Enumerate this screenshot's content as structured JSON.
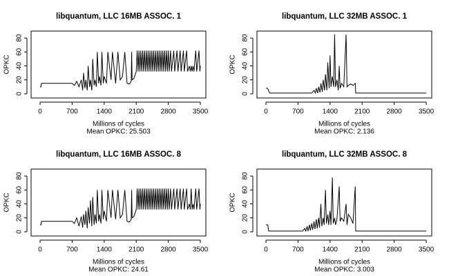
{
  "chart_data": [
    {
      "type": "line",
      "title": "libquantum, LLC 16MB ASSOC. 1",
      "xlabel": "Millions of cycles",
      "subtitle": "Mean OPKC: 25.503",
      "ylabel": "OPKC",
      "color": "#000000",
      "xlim": [
        -196,
        3620
      ],
      "ylim": [
        -6,
        90
      ],
      "xticks": [
        0,
        700,
        1400,
        2100,
        2800,
        3500
      ],
      "yticks": [
        0,
        20,
        40,
        60,
        80
      ],
      "x": [
        0,
        20,
        30,
        700,
        750,
        800,
        850,
        900,
        930,
        950,
        980,
        1000,
        1030,
        1050,
        1080,
        1100,
        1130,
        1150,
        1180,
        1200,
        1230,
        1250,
        1280,
        1300,
        1330,
        1350,
        1380,
        1400,
        1450,
        1480,
        1550,
        1580,
        1650,
        1700,
        1750,
        1800,
        1850,
        1900,
        1950,
        1990,
        2000,
        2010,
        2050,
        2100,
        2120,
        2140,
        2160,
        2180,
        2200,
        2220,
        2240,
        2260,
        2280,
        2300,
        2320,
        2340,
        2360,
        2380,
        2400,
        2420,
        2440,
        2460,
        2480,
        2500,
        2520,
        2540,
        2560,
        2580,
        2600,
        2620,
        2640,
        2660,
        2680,
        2700,
        2720,
        2740,
        2760,
        2780,
        2800,
        2820,
        2850,
        2870,
        2920,
        2940,
        2990,
        3010,
        3060,
        3080,
        3130,
        3150,
        3200,
        3220,
        3260,
        3280,
        3300,
        3320,
        3340,
        3360,
        3400,
        3420,
        3470,
        3490,
        3500
      ],
      "values": [
        10,
        10,
        15,
        15,
        12,
        18,
        10,
        20,
        5,
        30,
        8,
        20,
        5,
        40,
        10,
        20,
        5,
        50,
        12,
        20,
        10,
        60,
        15,
        25,
        12,
        60,
        15,
        25,
        15,
        60,
        20,
        60,
        15,
        60,
        20,
        25,
        60,
        15,
        14,
        18,
        60,
        20,
        22,
        32,
        62,
        32,
        62,
        32,
        62,
        32,
        62,
        32,
        62,
        32,
        62,
        32,
        62,
        32,
        62,
        32,
        62,
        32,
        62,
        32,
        62,
        32,
        62,
        32,
        62,
        32,
        62,
        32,
        62,
        32,
        62,
        32,
        62,
        32,
        62,
        32,
        62,
        32,
        62,
        32,
        62,
        32,
        62,
        32,
        62,
        32,
        62,
        32,
        40,
        32,
        40,
        32,
        40,
        32,
        62,
        32,
        62,
        32,
        40
      ]
    },
    {
      "type": "line",
      "title": "libquantum, LLC 32MB ASSOC. 1",
      "xlabel": "Millions of cycles",
      "subtitle": "Mean OPKC: 2.136",
      "ylabel": "OPKC",
      "color": "#000000",
      "xlim": [
        -196,
        3620
      ],
      "ylim": [
        -6,
        90
      ],
      "xticks": [
        0,
        700,
        1400,
        2100,
        2800,
        3500
      ],
      "yticks": [
        0,
        20,
        40,
        60,
        80
      ],
      "x": [
        0,
        30,
        50,
        80,
        700,
        1000,
        1050,
        1080,
        1100,
        1130,
        1150,
        1180,
        1200,
        1230,
        1250,
        1280,
        1300,
        1330,
        1350,
        1380,
        1400,
        1420,
        1450,
        1480,
        1500,
        1520,
        1550,
        1580,
        1600,
        1620,
        1650,
        1700,
        1750,
        1770,
        1800,
        1850,
        1900,
        1950,
        1960,
        3500
      ],
      "values": [
        8,
        8,
        6,
        1,
        1,
        1,
        5,
        1,
        8,
        1,
        10,
        2,
        15,
        3,
        20,
        5,
        28,
        5,
        45,
        8,
        55,
        10,
        25,
        10,
        85,
        10,
        20,
        5,
        40,
        8,
        15,
        10,
        85,
        10,
        12,
        14,
        12,
        15,
        1,
        1
      ]
    },
    {
      "type": "line",
      "title": "libquantum, LLC 16MB ASSOC. 8",
      "xlabel": "Millions of cycles",
      "subtitle": "Mean OPKC: 24.61",
      "ylabel": "OPKC",
      "color": "#000000",
      "xlim": [
        -196,
        3620
      ],
      "ylim": [
        -6,
        90
      ],
      "xticks": [
        0,
        700,
        1400,
        2100,
        2800,
        3500
      ],
      "yticks": [
        0,
        20,
        40,
        60,
        80
      ],
      "x": [
        0,
        20,
        30,
        700,
        750,
        800,
        850,
        900,
        930,
        950,
        980,
        1000,
        1030,
        1050,
        1080,
        1100,
        1130,
        1150,
        1180,
        1200,
        1230,
        1250,
        1280,
        1300,
        1330,
        1350,
        1380,
        1400,
        1450,
        1480,
        1550,
        1580,
        1650,
        1700,
        1750,
        1800,
        1850,
        1900,
        1950,
        1990,
        2000,
        2010,
        2050,
        2100,
        2120,
        2140,
        2160,
        2180,
        2200,
        2220,
        2240,
        2260,
        2280,
        2300,
        2320,
        2340,
        2360,
        2380,
        2400,
        2420,
        2440,
        2460,
        2480,
        2500,
        2520,
        2540,
        2560,
        2580,
        2600,
        2620,
        2640,
        2660,
        2680,
        2700,
        2720,
        2740,
        2760,
        2780,
        2800,
        2820,
        2850,
        2870,
        2920,
        2940,
        2990,
        3010,
        3060,
        3080,
        3130,
        3150,
        3200,
        3220,
        3260,
        3280,
        3300,
        3320,
        3340,
        3360,
        3400,
        3420,
        3470,
        3490,
        3500
      ],
      "values": [
        10,
        10,
        15,
        15,
        12,
        20,
        8,
        22,
        6,
        25,
        10,
        30,
        5,
        35,
        12,
        45,
        8,
        50,
        10,
        25,
        12,
        60,
        15,
        25,
        12,
        60,
        18,
        30,
        15,
        60,
        20,
        60,
        18,
        60,
        20,
        25,
        60,
        15,
        14,
        18,
        60,
        20,
        22,
        32,
        62,
        32,
        62,
        32,
        62,
        32,
        62,
        32,
        62,
        32,
        62,
        32,
        62,
        32,
        62,
        32,
        62,
        32,
        62,
        32,
        62,
        32,
        62,
        32,
        62,
        32,
        62,
        32,
        62,
        32,
        62,
        32,
        62,
        32,
        62,
        32,
        62,
        32,
        62,
        32,
        62,
        32,
        62,
        32,
        62,
        32,
        62,
        32,
        40,
        32,
        62,
        32,
        40,
        32,
        62,
        32,
        62,
        32,
        40
      ]
    },
    {
      "type": "line",
      "title": "libquantum, LLC 32MB ASSOC. 8",
      "xlabel": "Millions of cycles",
      "subtitle": "Mean OPKC: 3.003",
      "ylabel": "OPKC",
      "color": "#000000",
      "xlim": [
        -196,
        3620
      ],
      "ylim": [
        -6,
        90
      ],
      "xticks": [
        0,
        700,
        1400,
        2100,
        2800,
        3500
      ],
      "yticks": [
        0,
        20,
        40,
        60,
        80
      ],
      "x": [
        0,
        40,
        60,
        800,
        850,
        870,
        900,
        920,
        950,
        970,
        1000,
        1020,
        1050,
        1070,
        1100,
        1120,
        1150,
        1170,
        1200,
        1220,
        1250,
        1270,
        1300,
        1320,
        1350,
        1370,
        1400,
        1420,
        1450,
        1470,
        1500,
        1520,
        1550,
        1600,
        1620,
        1650,
        1700,
        1750,
        1770,
        1800,
        1850,
        1900,
        1950,
        1960,
        3500
      ],
      "values": [
        10,
        10,
        1,
        1,
        5,
        1,
        8,
        1,
        10,
        2,
        12,
        3,
        15,
        4,
        18,
        5,
        20,
        6,
        40,
        8,
        20,
        10,
        60,
        12,
        25,
        10,
        30,
        10,
        78,
        12,
        20,
        10,
        18,
        65,
        15,
        20,
        15,
        40,
        10,
        25,
        20,
        12,
        65,
        1,
        1
      ]
    }
  ]
}
